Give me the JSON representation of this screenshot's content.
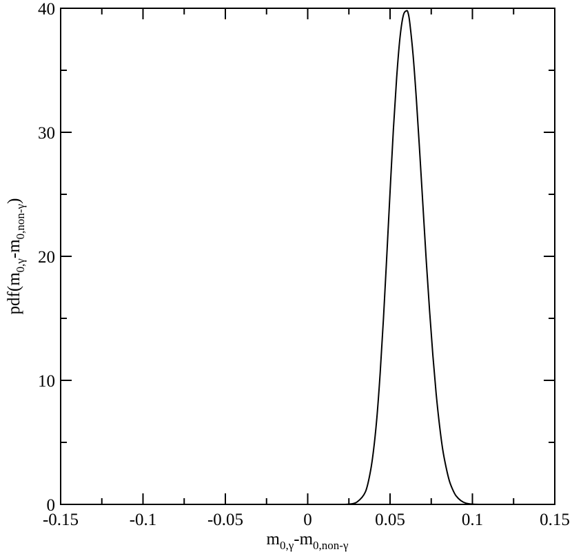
{
  "chart_data": {
    "type": "line",
    "xlabel": {
      "main": "m",
      "sub1": "0,γ",
      "mid": "-m",
      "sub2": "0,non-γ"
    },
    "ylabel": {
      "main": "pdf(m",
      "sub1": "0,γ",
      "mid": "-m",
      "sub2": "0,non-γ",
      "end": ")"
    },
    "xlim": [
      -0.15,
      0.15
    ],
    "ylim": [
      0,
      40
    ],
    "x_ticks": [
      -0.15,
      -0.1,
      -0.05,
      0,
      0.05,
      0.1,
      0.15
    ],
    "x_tick_labels": [
      "-0.15",
      "-0.1",
      "-0.05",
      "0",
      "0.05",
      "0.1",
      "0.15"
    ],
    "y_ticks": [
      0,
      10,
      20,
      30,
      40
    ],
    "y_tick_labels": [
      "0",
      "10",
      "20",
      "30",
      "40"
    ],
    "grid": false,
    "series": [
      {
        "color": "#000000",
        "x": [
          0.02,
          0.025,
          0.03,
          0.035,
          0.038,
          0.04,
          0.042,
          0.044,
          0.046,
          0.048,
          0.05,
          0.052,
          0.054,
          0.056,
          0.058,
          0.06,
          0.061,
          0.062,
          0.064,
          0.066,
          0.068,
          0.07,
          0.072,
          0.074,
          0.076,
          0.078,
          0.08,
          0.082,
          0.084,
          0.086,
          0.088,
          0.09,
          0.093,
          0.096,
          0.1,
          0.105,
          0.11
        ],
        "y": [
          0.0,
          0.02,
          0.2,
          1.0,
          2.6,
          4.4,
          7.0,
          10.6,
          15.0,
          20.0,
          25.2,
          30.2,
          34.4,
          37.6,
          39.4,
          39.8,
          39.6,
          38.8,
          36.2,
          32.6,
          28.4,
          24.0,
          19.6,
          15.6,
          12.0,
          8.9,
          6.4,
          4.4,
          3.0,
          1.9,
          1.2,
          0.7,
          0.3,
          0.1,
          0.02,
          0.0,
          0.0
        ]
      }
    ]
  }
}
